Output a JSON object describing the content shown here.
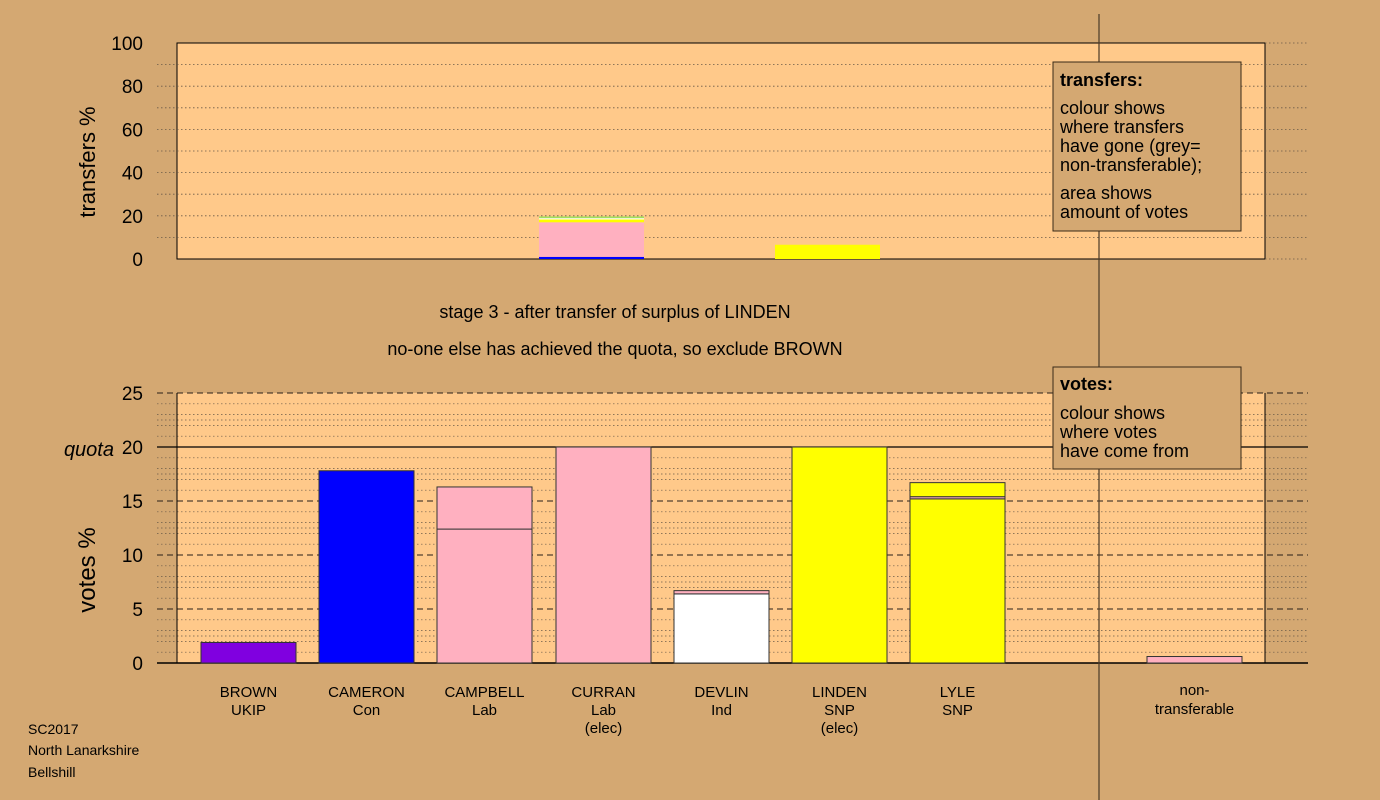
{
  "chart_data": [
    {
      "type": "bar",
      "ylabel": "transfers %",
      "ylim": [
        0,
        100
      ],
      "y_ticks": [
        0,
        20,
        40,
        60,
        80,
        100
      ],
      "grid": "dotted every 10",
      "legend_placement": "top-right",
      "legend": {
        "title": "transfers:",
        "lines": [
          "colour shows",
          "where transfers",
          "have gone (grey=",
          "non-transferable);",
          "area shows",
          "amount of votes"
        ]
      },
      "stacks": [
        {
          "column": "CURRAN",
          "segments": [
            {
              "color": "#0000ff",
              "value": 1.0
            },
            {
              "color": "#ffb0c0",
              "value": 16.0
            },
            {
              "color": "#ffff00",
              "value": 1.3
            },
            {
              "color": "#ffffff",
              "value": 0.6
            },
            {
              "color": "#a0e060",
              "value": 0.8
            }
          ]
        },
        {
          "column": "LINDEN",
          "segments": [
            {
              "color": "#ffff00",
              "value": 6.6
            }
          ]
        }
      ]
    },
    {
      "type": "bar",
      "ylabel": "votes %",
      "ylim": [
        0,
        25
      ],
      "y_ticks": [
        0,
        5,
        10,
        15,
        20,
        25
      ],
      "quota": {
        "label": "quota",
        "value": 20
      },
      "grid": "dashed every 2.5, dotted every 1",
      "legend_placement": "top-right",
      "legend": {
        "title": "votes:",
        "lines": [
          "colour shows",
          "where votes",
          "have come from"
        ]
      },
      "candidates": [
        {
          "name": "BROWN",
          "party": "UKIP",
          "note": "",
          "segments": [
            {
              "color": "#8000e0",
              "value": 1.9
            }
          ]
        },
        {
          "name": "CAMERON",
          "party": "Con",
          "note": "",
          "segments": [
            {
              "color": "#0000ff",
              "value": 17.8
            }
          ]
        },
        {
          "name": "CAMPBELL",
          "party": "Lab",
          "note": "",
          "segments": [
            {
              "color": "#ffb0c0",
              "value": 12.4
            },
            {
              "color": "#ffb0c0",
              "value": 3.9
            }
          ]
        },
        {
          "name": "CURRAN",
          "party": "Lab",
          "note": "(elec)",
          "segments": [
            {
              "color": "#ffb0c0",
              "value": 20.0
            }
          ]
        },
        {
          "name": "DEVLIN",
          "party": "Ind",
          "note": "",
          "segments": [
            {
              "color": "#ffffff",
              "value": 6.4
            },
            {
              "color": "#ffb0c0",
              "value": 0.3
            }
          ]
        },
        {
          "name": "LINDEN",
          "party": "SNP",
          "note": "(elec)",
          "segments": [
            {
              "color": "#ffff00",
              "value": 20.0
            }
          ]
        },
        {
          "name": "LYLE",
          "party": "SNP",
          "note": "",
          "segments": [
            {
              "color": "#ffff00",
              "value": 15.2
            },
            {
              "color": "#ffb0c0",
              "value": 0.2
            },
            {
              "color": "#ffff00",
              "value": 1.3
            }
          ]
        }
      ],
      "nontransferable": {
        "label_lines": [
          "non-",
          "transferable"
        ],
        "color": "#ffb0c0",
        "value": 0.6
      }
    }
  ],
  "stage_text": {
    "line1": "stage 3 - after transfer of surplus of LINDEN",
    "line2": "no-one else has achieved the quota, so exclude BROWN"
  },
  "footer": [
    "SC2017",
    "North Lanarkshire",
    "Bellshill"
  ]
}
